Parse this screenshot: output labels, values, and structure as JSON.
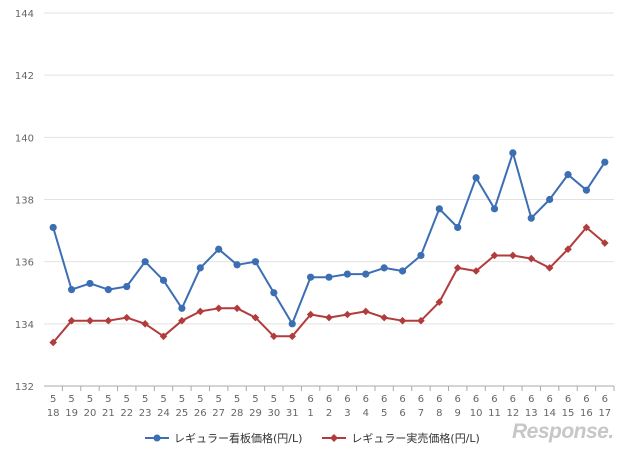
{
  "chart_data": {
    "type": "line",
    "categories": [
      [
        "5",
        "18"
      ],
      [
        "5",
        "19"
      ],
      [
        "5",
        "20"
      ],
      [
        "5",
        "21"
      ],
      [
        "5",
        "22"
      ],
      [
        "5",
        "23"
      ],
      [
        "5",
        "24"
      ],
      [
        "5",
        "25"
      ],
      [
        "5",
        "26"
      ],
      [
        "5",
        "27"
      ],
      [
        "5",
        "28"
      ],
      [
        "5",
        "29"
      ],
      [
        "5",
        "30"
      ],
      [
        "5",
        "31"
      ],
      [
        "6",
        "1"
      ],
      [
        "6",
        "2"
      ],
      [
        "6",
        "3"
      ],
      [
        "6",
        "4"
      ],
      [
        "6",
        "5"
      ],
      [
        "6",
        "6"
      ],
      [
        "6",
        "7"
      ],
      [
        "6",
        "8"
      ],
      [
        "6",
        "9"
      ],
      [
        "6",
        "10"
      ],
      [
        "6",
        "11"
      ],
      [
        "6",
        "12"
      ],
      [
        "6",
        "13"
      ],
      [
        "6",
        "14"
      ],
      [
        "6",
        "15"
      ],
      [
        "6",
        "16"
      ],
      [
        "6",
        "17"
      ]
    ],
    "ylim": [
      132,
      144
    ],
    "yticks": [
      132,
      134,
      136,
      138,
      140,
      142,
      144
    ],
    "grid": true,
    "legend_position": "bottom",
    "series": [
      {
        "name": "レギュラー看板価格(円/L)",
        "color": "#3c6eb4",
        "marker": "circle",
        "values": [
          137.1,
          135.1,
          135.3,
          135.1,
          135.2,
          136.0,
          135.4,
          134.5,
          135.8,
          136.4,
          135.9,
          136.0,
          135.0,
          134.0,
          135.5,
          135.5,
          135.6,
          135.6,
          135.8,
          135.7,
          136.2,
          137.7,
          137.1,
          138.7,
          137.7,
          139.5,
          137.4,
          138.0,
          138.8,
          138.3,
          139.2
        ]
      },
      {
        "name": "レギュラー実売価格(円/L)",
        "color": "#b23c3c",
        "marker": "diamond",
        "values": [
          133.4,
          134.1,
          134.1,
          134.1,
          134.2,
          134.0,
          133.6,
          134.1,
          134.4,
          134.5,
          134.5,
          134.2,
          133.6,
          133.6,
          134.3,
          134.2,
          134.3,
          134.4,
          134.2,
          134.1,
          134.1,
          134.7,
          135.8,
          135.7,
          136.2,
          136.2,
          136.1,
          135.8,
          136.4,
          137.1,
          136.6
        ]
      }
    ]
  },
  "branding": {
    "logo_text": "Response."
  }
}
